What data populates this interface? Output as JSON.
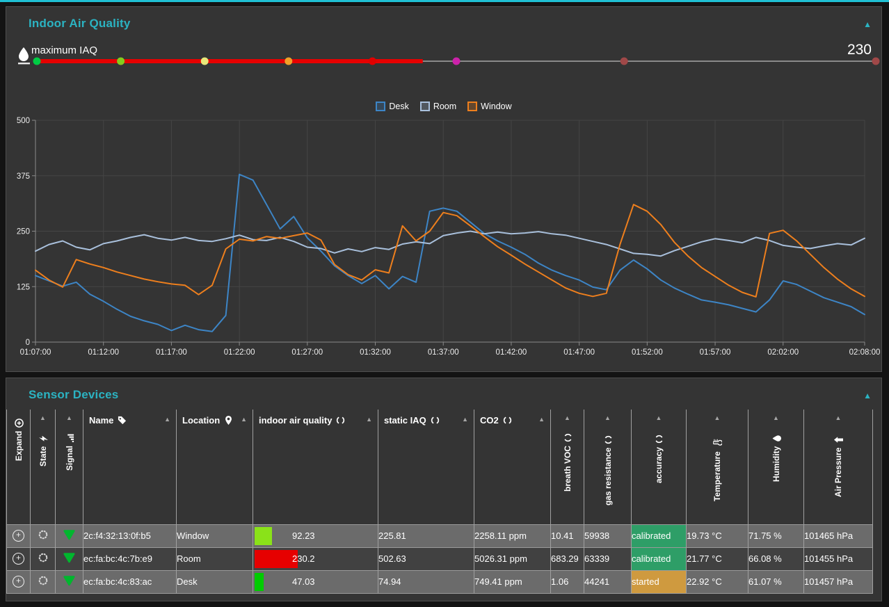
{
  "ui": {
    "collapse_icon": "▲",
    "sort_icon": "▲",
    "accent_teal": "#2bb3c2",
    "panel_bg": "#343434",
    "row_odd_bg": "#6b6b6b",
    "row_even_bg": "#414141",
    "top_line_color": "#1fc0d4"
  },
  "iaq_panel": {
    "title": "Indoor Air Quality",
    "gauge": {
      "label": "maximum IAQ",
      "value": 230,
      "value_label": "230",
      "min": 0,
      "max": 500,
      "bar_color": "#e60000",
      "track_color": "#8a8a8a",
      "thresholds": [
        {
          "value": 0,
          "color": "#00cc44"
        },
        {
          "value": 50,
          "color": "#84cc1e"
        },
        {
          "value": 100,
          "color": "#e8e87a"
        },
        {
          "value": 150,
          "color": "#f0a028"
        },
        {
          "value": 200,
          "color": "#e00000"
        },
        {
          "value": 250,
          "color": "#cc22aa"
        },
        {
          "value": 350,
          "color": "#a04848"
        },
        {
          "value": 500,
          "color": "#a04848"
        }
      ]
    }
  },
  "chart_data": {
    "type": "line",
    "title": "",
    "xlabel": "",
    "ylabel": "",
    "ylim": [
      0,
      500
    ],
    "yticks": [
      0,
      125,
      250,
      375,
      500
    ],
    "grid": true,
    "legend_position": "top-center",
    "x_start": "01:07:00",
    "x_end": "02:08:00",
    "x_interval_minutes": 1,
    "tick_labels": [
      "01:07:00",
      "01:12:00",
      "01:17:00",
      "01:22:00",
      "01:27:00",
      "01:32:00",
      "01:37:00",
      "01:42:00",
      "01:47:00",
      "01:52:00",
      "01:57:00",
      "02:02:00",
      "02:08:00"
    ],
    "tick_indices": [
      0,
      5,
      10,
      15,
      20,
      25,
      30,
      35,
      40,
      45,
      50,
      55,
      61
    ],
    "series": [
      {
        "name": "Desk",
        "color": "#3d85c6",
        "values": [
          150,
          138,
          126,
          135,
          108,
          92,
          74,
          58,
          48,
          40,
          26,
          38,
          28,
          24,
          60,
          378,
          365,
          310,
          255,
          283,
          235,
          205,
          172,
          150,
          132,
          150,
          120,
          148,
          135,
          295,
          302,
          295,
          270,
          245,
          228,
          214,
          198,
          178,
          162,
          150,
          140,
          124,
          118,
          162,
          185,
          165,
          140,
          122,
          108,
          95,
          90,
          84,
          76,
          68,
          95,
          138,
          130,
          115,
          100,
          90,
          80,
          62
        ]
      },
      {
        "name": "Room",
        "color": "#a9c0dc",
        "values": [
          205,
          220,
          228,
          214,
          208,
          222,
          228,
          236,
          242,
          234,
          230,
          236,
          229,
          227,
          233,
          241,
          231,
          229,
          236,
          227,
          214,
          211,
          201,
          210,
          204,
          213,
          209,
          221,
          226,
          222,
          240,
          246,
          250,
          244,
          248,
          244,
          246,
          249,
          244,
          241,
          234,
          227,
          220,
          210,
          200,
          198,
          194,
          206,
          216,
          226,
          233,
          229,
          224,
          236,
          229,
          218,
          214,
          211,
          217,
          222,
          219,
          234
        ]
      },
      {
        "name": "Window",
        "color": "#ee7f1d",
        "values": [
          162,
          140,
          124,
          186,
          176,
          168,
          158,
          150,
          142,
          136,
          131,
          128,
          107,
          128,
          210,
          232,
          228,
          238,
          234,
          240,
          246,
          230,
          175,
          152,
          140,
          163,
          156,
          262,
          228,
          250,
          292,
          285,
          262,
          238,
          215,
          196,
          176,
          158,
          140,
          122,
          110,
          103,
          110,
          220,
          310,
          295,
          265,
          225,
          194,
          168,
          148,
          128,
          112,
          102,
          245,
          252,
          228,
          198,
          168,
          142,
          120,
          103
        ]
      }
    ]
  },
  "devices_panel": {
    "title": "Sensor Devices",
    "table": {
      "columns": [
        {
          "id": "expand",
          "label": "Expand",
          "icon": "plus-circle-icon",
          "vertical": true,
          "sortable": false
        },
        {
          "id": "state",
          "label": "State",
          "icon": "lightning-icon",
          "vertical": true,
          "sortable": true
        },
        {
          "id": "signal",
          "label": "Signal",
          "icon": "signal-bars-icon",
          "vertical": true,
          "sortable": true
        },
        {
          "id": "name",
          "label": "Name",
          "icon": "tag-icon",
          "vertical": false,
          "sortable": true
        },
        {
          "id": "location",
          "label": "Location",
          "icon": "pin-icon",
          "vertical": false,
          "sortable": true
        },
        {
          "id": "indoor_air_quality",
          "label": "indoor air quality",
          "icon": "circle-icon",
          "vertical": false,
          "sortable": true
        },
        {
          "id": "static_iaq",
          "label": "static IAQ",
          "icon": "circle-icon",
          "vertical": false,
          "sortable": true
        },
        {
          "id": "co2",
          "label": "CO2",
          "icon": "circle-icon",
          "vertical": false,
          "sortable": true
        },
        {
          "id": "breath_voc",
          "label": "breath VOC",
          "icon": "circle-icon",
          "vertical": true,
          "sortable": true
        },
        {
          "id": "gas_resistance",
          "label": "gas resistance",
          "icon": "circle-icon",
          "vertical": true,
          "sortable": true
        },
        {
          "id": "accuracy",
          "label": "accuracy",
          "icon": "circle-icon",
          "vertical": true,
          "sortable": true
        },
        {
          "id": "temperature",
          "label": "Temperature",
          "icon": "thermometer-icon",
          "vertical": true,
          "sortable": true
        },
        {
          "id": "humidity",
          "label": "Humidity",
          "icon": "droplet-icon",
          "vertical": true,
          "sortable": true
        },
        {
          "id": "air_pressure",
          "label": "Air Pressure",
          "icon": "arrow-up-icon",
          "vertical": true,
          "sortable": true
        }
      ],
      "rows": [
        {
          "name": "2c:f4:32:13:0f:b5",
          "location": "Window",
          "iaq": 92.23,
          "iaq_label": "92.23",
          "iaq_color": "#8ae219",
          "static_iaq": "225.81",
          "co2": "2258.11 ppm",
          "breath_voc": "10.41",
          "gas_resistance": "59938",
          "accuracy": "calibrated",
          "accuracy_color": "#2e9e67",
          "temperature": "19.73 °C",
          "humidity": "71.75 %",
          "air_pressure": "101465 hPa"
        },
        {
          "name": "ec:fa:bc:4c:7b:e9",
          "location": "Room",
          "iaq": 230.2,
          "iaq_label": "230.2",
          "iaq_color": "#e60000",
          "static_iaq": "502.63",
          "co2": "5026.31 ppm",
          "breath_voc": "683.29",
          "gas_resistance": "63339",
          "accuracy": "calibrated",
          "accuracy_color": "#2e9e67",
          "temperature": "21.77 °C",
          "humidity": "66.08 %",
          "air_pressure": "101455 hPa"
        },
        {
          "name": "ec:fa:bc:4c:83:ac",
          "location": "Desk",
          "iaq": 47.03,
          "iaq_label": "47.03",
          "iaq_color": "#00cc00",
          "static_iaq": "74.94",
          "co2": "749.41 ppm",
          "breath_voc": "1.06",
          "gas_resistance": "44241",
          "accuracy": "started",
          "accuracy_color": "#cf9a3f",
          "temperature": "22.92 °C",
          "humidity": "61.07 %",
          "air_pressure": "101457 hPa"
        }
      ]
    }
  }
}
